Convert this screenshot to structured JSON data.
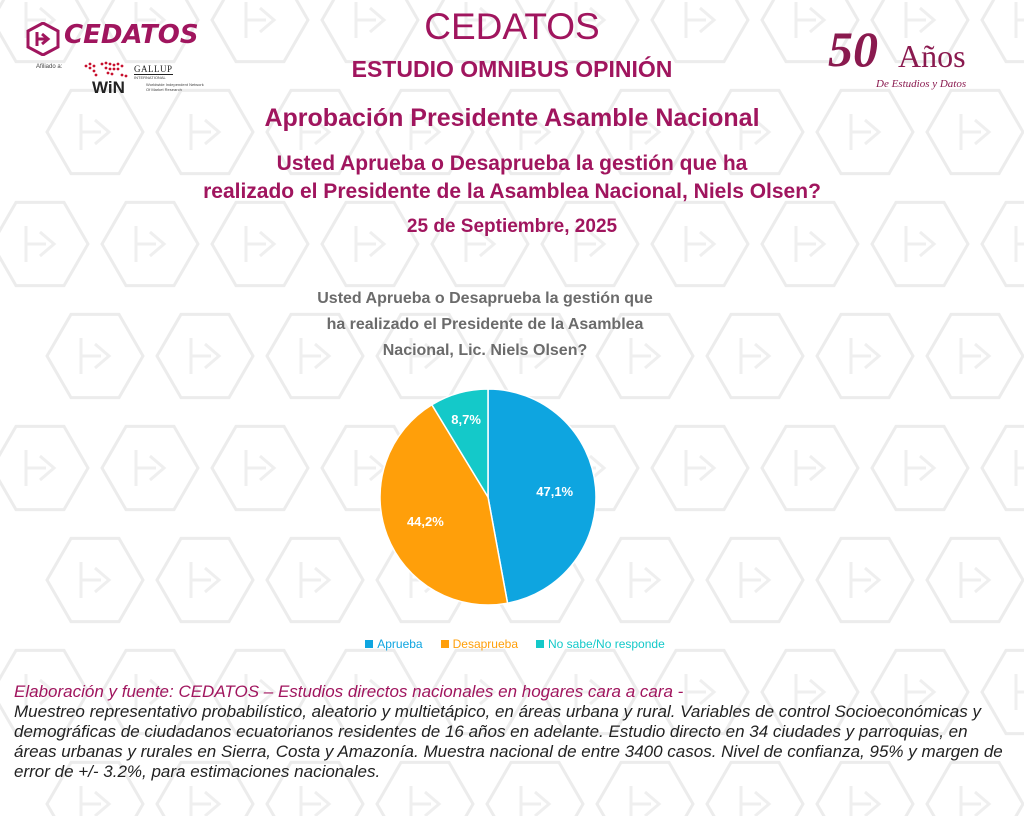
{
  "header": {
    "logo_text": "CEDATOS",
    "affiliation_label": "Afiliado a:",
    "win_label": "WiN",
    "win_subtext": "Worldwide Independent Network Of Market Research",
    "gallup_label": "GALLUP",
    "gallup_subtext": "INTERNATIONAL",
    "brand_title": "CEDATOS",
    "study_title": "ESTUDIO OMNIBUS OPINIÓN",
    "anniversary_number": "50",
    "anniversary_word": "Años",
    "anniversary_subtitle": "De Estudios y Datos"
  },
  "main": {
    "heading": "Aprobación Presidente Asamble Nacional",
    "question_line1": "Usted Aprueba o Desaprueba la gestión que ha",
    "question_line2": "realizado el Presidente de la Asamblea Nacional, Niels Olsen?",
    "date": "25 de Septiembre, 2025"
  },
  "chart_data": {
    "type": "pie",
    "title_line1": "Usted Aprueba o Desaprueba la gestión que",
    "title_line2": "ha realizado el Presidente de la Asamblea",
    "title_line3": "Nacional,  Lic. Niels Olsen?",
    "legend_position": "bottom",
    "slices": [
      {
        "name": "Aprueba",
        "value": 47.1,
        "label": "47,1%",
        "color": "#0ea5e0"
      },
      {
        "name": "Desaprueba",
        "value": 44.2,
        "label": "44,2%",
        "color": "#ff9f0a"
      },
      {
        "name": "No sabe/No responde",
        "value": 8.7,
        "label": "8,7%",
        "color": "#14c9c9"
      }
    ]
  },
  "footer": {
    "lead": "Elaboración y fuente: CEDATOS – Estudios directos nacionales en hogares cara a cara -",
    "body": "Muestreo representativo probabilístico, aleatorio y multietápico, en áreas urbana y rural.  Variables de control Socioeconómicas y demográficas de ciudadanos ecuatorianos residentes de 16 años en adelante. Estudio directo en 34 ciudades y parroquias, en áreas urbanas y rurales en Sierra, Costa y Amazonía. Muestra nacional de entre 3400 casos. Nivel de confianza, 95% y margen  de error de +/- 3.2%, para estimaciones nacionales."
  },
  "colors": {
    "brand": "#a0155e",
    "anniversary": "#8a1a4f"
  }
}
